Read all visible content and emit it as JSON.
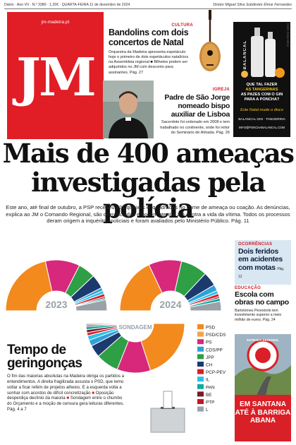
{
  "topbar": {
    "left": "Diário · Ano VII · N.º 3380 · 1,20€ · QUARTA-FEIRA 11 de dezembro de 2024",
    "right": "Diretor Miguel Silva  Subdiretor Élmar Fernandes"
  },
  "masthead": {
    "url": "jm-madeira.pt",
    "logo": "JM"
  },
  "story_bandolins": {
    "kicker": "CULTURA",
    "title": "Bandolins com dois concertos de Natal",
    "body": "Orquestra da Madeira apresenta espetáculo hoje o primeiro de dois espetáculos natalícios na Assembleia regional ■ Bilhetes podem ser adquiridos no JM com desconto para assinantes. Pág. 27"
  },
  "story_bispo": {
    "kicker": "IGREJA",
    "title": "Padre de São Jorge nomeado bispo auxiliar de Lisboa",
    "body": "Sacerdote foi ordenado em 2008 e tem trabalhado no continente, onde foi reitor do Seminário de Almada. Pág. 26"
  },
  "ad_top": {
    "brand": "BALANCAL",
    "line1": "QUE TAL FAZER",
    "line2": "AS PAZES COM O GIN",
    "line3": "PARA A PONCHA?",
    "line4": "Este Natal mude o disco",
    "line5": "BALANCAL GIN · TANGERINA",
    "line6": "INFO@PONCHABALANCAL.COM",
    "tangerinas": "AS TANGERINAS",
    "side": "ISSN 2184-5913"
  },
  "headline": {
    "line1": "Mais de 400 ameaças",
    "line2": "investigadas pela polícia",
    "lede": "Este ano, até final de outubro, a PSP recebeu 421 queixas enquadradas no crime de ameaça ou coação. As denúncias, explica ao JM o Comando Regional, são diferenciadas e podem atentar até contra a vida da vítima. Todos os processos deram origem a inquéritos policiais e foram avaliados pelo Ministério Público. Pág. 11"
  },
  "story_ocorrencias": {
    "kicker": "OCORRÊNCIAS",
    "title": "Dois feridos em acidentes com motas",
    "page": "Pág. 12"
  },
  "story_educacao": {
    "kicker": "EDUCAÇÃO",
    "title": "Escola com obras no campo",
    "body": "Bartolomeu Perestrelo tem investimento superior a meio milhão de euros. Pág. 24"
  },
  "ad_bottom": {
    "badge": "ESTRADA REGIONAL",
    "line1": "EM SANTANA",
    "line2": "ATÉ À BARRIGA ABANA"
  },
  "story_tempo": {
    "title": "Tempo de geringonças",
    "body_a": "O fim das maiorias absolutas na Madeira obriga os partidos a entendimentos. A direita fragilizada assusta o PSD, que temo voltar a ficar refém de projetos alheios. E a esquerda volta a sonhar com acordos de difícil concretização ",
    "body_b": " Oposição desperdiça declínio da maioria ",
    "body_c": " Sondagem entre o chumbo do Orçamento e a moção de censura gera leituras diferentes. Pág. 4 a 7",
    "mark": "■"
  },
  "chart_data": [
    {
      "type": "pie",
      "title": "2023",
      "segments": [
        {
          "party": "PSD",
          "value": 43,
          "color": "#f28a1e"
        },
        {
          "party": "PS",
          "value": 22,
          "color": "#d7287c"
        },
        {
          "party": "JPP",
          "value": 11,
          "color": "#2e9f45"
        },
        {
          "party": "CH",
          "value": 9,
          "color": "#1b3a6e"
        },
        {
          "party": "CDS/PP",
          "value": 2,
          "color": "#2fa0d8"
        },
        {
          "party": "IL",
          "value": 2,
          "color": "#2ac1e8"
        },
        {
          "party": "PCP-PEV",
          "value": 2,
          "color": "#d91f27"
        },
        {
          "party": "BE",
          "value": 1,
          "color": "#7a1a2a"
        },
        {
          "party": "PAN",
          "value": 1,
          "color": "#14a8a0"
        },
        {
          "party": "Outros",
          "value": 7,
          "color": "#9aa1a8"
        }
      ]
    },
    {
      "type": "pie",
      "title": "2024",
      "segments": [
        {
          "party": "PSD",
          "value": 36,
          "color": "#f28a1e"
        },
        {
          "party": "PS",
          "value": 21,
          "color": "#d7287c"
        },
        {
          "party": "JPP",
          "value": 17,
          "color": "#2e9f45"
        },
        {
          "party": "CH",
          "value": 9,
          "color": "#1b3a6e"
        },
        {
          "party": "CDS/PP",
          "value": 4,
          "color": "#2fa0d8"
        },
        {
          "party": "IL",
          "value": 2,
          "color": "#2ac1e8"
        },
        {
          "party": "PCP-PEV",
          "value": 2,
          "color": "#d91f27"
        },
        {
          "party": "BE",
          "value": 1,
          "color": "#7a1a2a"
        },
        {
          "party": "PAN",
          "value": 2,
          "color": "#14a8a0"
        },
        {
          "party": "Outros",
          "value": 6,
          "color": "#9aa1a8"
        }
      ]
    },
    {
      "type": "pie",
      "title": "SONDAGEM",
      "legend": [
        {
          "party": "PSD",
          "color": "#f28a1e"
        },
        {
          "party": "PSD/CDS",
          "color": "#f5a24a"
        },
        {
          "party": "PS",
          "color": "#d7287c"
        },
        {
          "party": "CDS/PP",
          "color": "#2fa0d8"
        },
        {
          "party": "JPP",
          "color": "#2e9f45"
        },
        {
          "party": "CH",
          "color": "#1b3a6e"
        },
        {
          "party": "PCP-PEV",
          "color": "#d91f27"
        },
        {
          "party": "IL",
          "color": "#2ac1e8"
        },
        {
          "party": "PAN",
          "color": "#14a8a0"
        },
        {
          "party": "BE",
          "color": "#7a1a2a"
        },
        {
          "party": "PTP",
          "color": "#c0182b"
        },
        {
          "party": "L",
          "color": "#9aa1a8"
        }
      ],
      "segments": [
        {
          "party": "PSD",
          "value": 40,
          "color": "#f28a1e"
        },
        {
          "party": "PS",
          "value": 22,
          "color": "#d7287c"
        },
        {
          "party": "JPP",
          "value": 15,
          "color": "#2e9f45"
        },
        {
          "party": "CH",
          "value": 8,
          "color": "#1b3a6e"
        },
        {
          "party": "CDS/PP",
          "value": 4,
          "color": "#2fa0d8"
        },
        {
          "party": "IL",
          "value": 3,
          "color": "#2ac1e8"
        },
        {
          "party": "PCP-PEV",
          "value": 2,
          "color": "#d91f27"
        },
        {
          "party": "BE",
          "value": 2,
          "color": "#7a1a2a"
        },
        {
          "party": "PAN",
          "value": 2,
          "color": "#14a8a0"
        },
        {
          "party": "PTP",
          "value": 1,
          "color": "#c0182b"
        },
        {
          "party": "L",
          "value": 1,
          "color": "#9aa1a8"
        }
      ]
    }
  ]
}
